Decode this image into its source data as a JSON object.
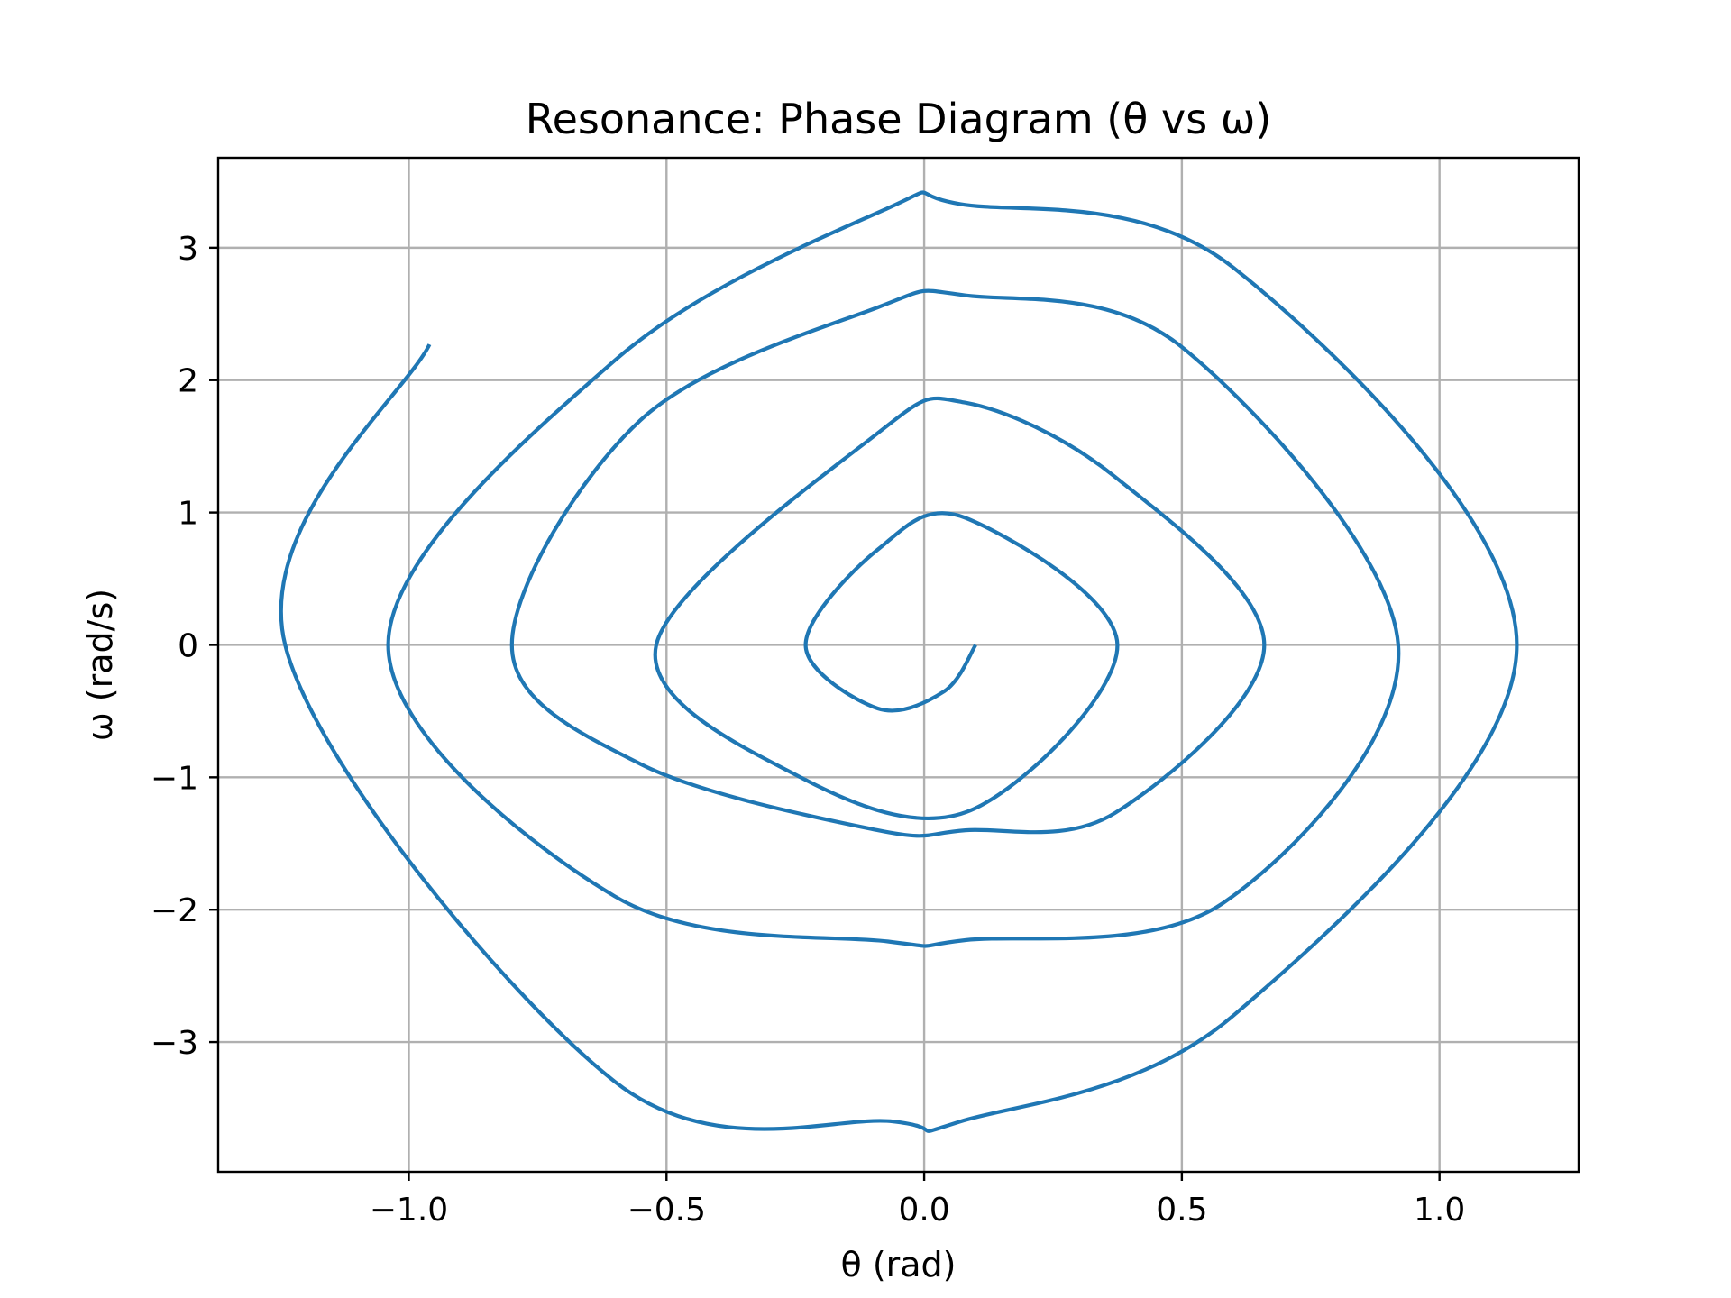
{
  "chart_data": {
    "type": "line",
    "title": "Resonance: Phase Diagram (θ vs ω)",
    "xlabel": "θ (rad)",
    "ylabel": "ω (rad/s)",
    "xlim": [
      -1.37,
      1.27
    ],
    "ylim": [
      -3.98,
      3.68
    ],
    "xticks": [
      -1.0,
      -0.5,
      0.0,
      0.5,
      1.0
    ],
    "xtick_labels": [
      "−1.0",
      "−0.5",
      "0.0",
      "0.5",
      "1.0"
    ],
    "yticks": [
      -3,
      -2,
      -1,
      0,
      1,
      2,
      3
    ],
    "ytick_labels": [
      "−3",
      "−2",
      "−1",
      "0",
      "1",
      "2",
      "3"
    ],
    "grid": true,
    "series": [
      {
        "color": "#1f77b4",
        "x": [
          0.1,
          0.039,
          -0.09,
          -0.23,
          -0.09,
          0.08,
          0.375,
          0.09,
          -0.24,
          -0.52,
          -0.09,
          0.08,
          0.37,
          0.66,
          0.37,
          0.08,
          -0.09,
          -0.55,
          -0.8,
          -0.55,
          -0.09,
          0.08,
          0.5,
          0.92,
          0.58,
          0.08,
          -0.07,
          -0.6,
          -1.04,
          -0.6,
          -0.07,
          0.07,
          0.6,
          1.15,
          0.6,
          0.07,
          -0.06,
          -0.6,
          -1.24,
          -0.96
        ],
        "y": [
          0.0,
          -0.35,
          -0.48,
          0.0,
          0.72,
          0.96,
          0.0,
          -1.25,
          -1.0,
          0.0,
          1.6,
          1.83,
          1.27,
          0.0,
          -1.27,
          -1.4,
          -1.4,
          -0.9,
          0.0,
          1.7,
          2.55,
          2.64,
          2.25,
          0.0,
          -1.95,
          -2.23,
          -2.24,
          -1.9,
          0.0,
          2.15,
          3.3,
          3.33,
          2.85,
          0.0,
          -2.8,
          -3.6,
          -3.6,
          -3.3,
          0.0,
          2.27
        ]
      }
    ]
  }
}
